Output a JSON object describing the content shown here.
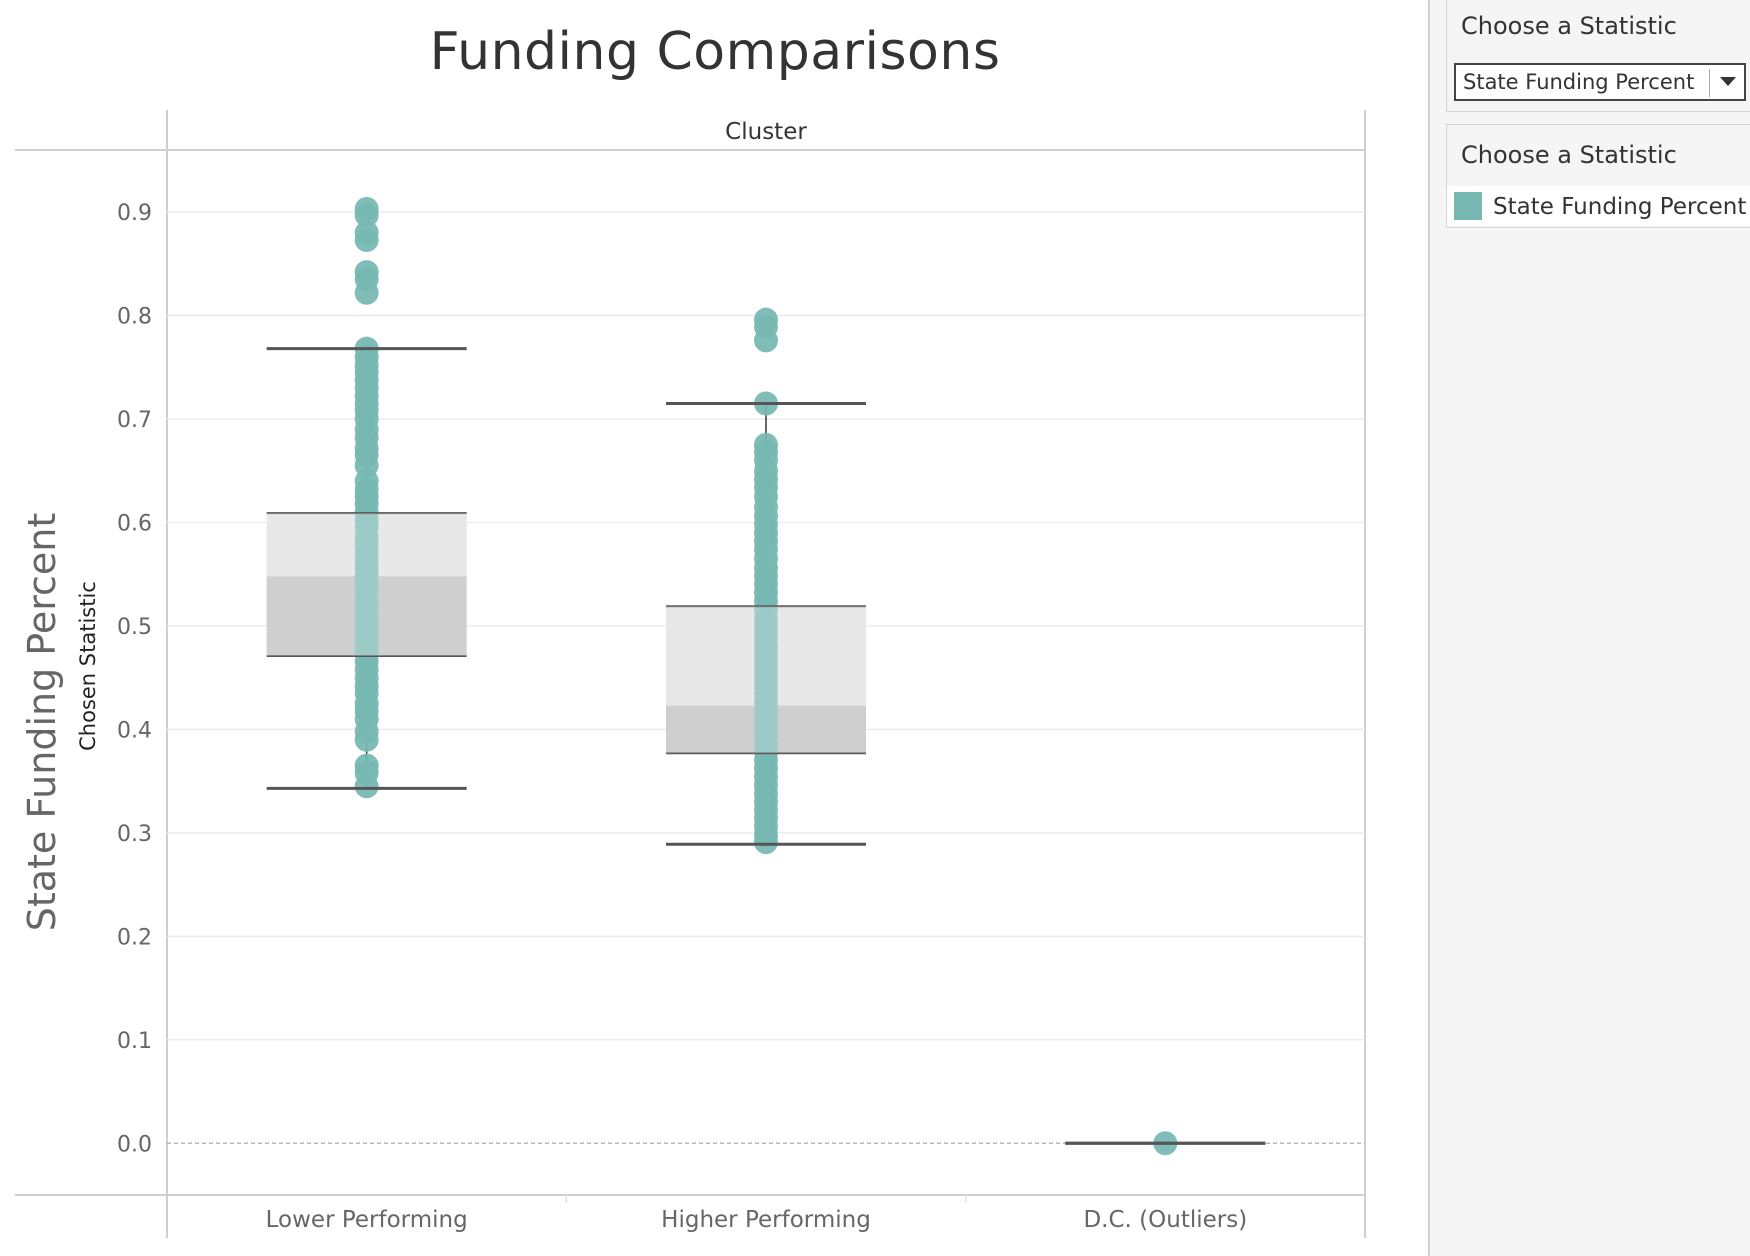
{
  "page": {
    "title": "Funding Comparisons"
  },
  "sidebar": {
    "parameter_title": "Choose a Statistic",
    "parameter_value": "State Funding Percent",
    "legend_title": "Choose a Statistic",
    "legend_item": "State Funding Percent",
    "legend_color": "#76b7b2"
  },
  "chart_data": {
    "type": "boxplot",
    "title": "Funding Comparisons",
    "column_header": "Cluster",
    "ylabel": "State Funding Percent",
    "ylabel_secondary": "Chosen Statistic",
    "ylim": [
      -0.05,
      0.96
    ],
    "yticks": [
      0.0,
      0.1,
      0.2,
      0.3,
      0.4,
      0.5,
      0.6,
      0.7,
      0.8,
      0.9
    ],
    "ytick_labels": [
      "0.0",
      "0.1",
      "0.2",
      "0.3",
      "0.4",
      "0.5",
      "0.6",
      "0.7",
      "0.8",
      "0.9"
    ],
    "grid": true,
    "point_color": "#76b7b2",
    "categories": [
      "Lower Performing",
      "Higher Performing",
      "D.C. (Outliers)"
    ],
    "boxes": [
      {
        "category": "Lower Performing",
        "whisker_low": 0.343,
        "q1": 0.471,
        "median": 0.548,
        "q3": 0.609,
        "whisker_high": 0.768,
        "points": [
          0.903,
          0.897,
          0.88,
          0.873,
          0.842,
          0.835,
          0.822,
          0.768,
          0.76,
          0.752,
          0.745,
          0.738,
          0.73,
          0.722,
          0.715,
          0.708,
          0.7,
          0.69,
          0.682,
          0.672,
          0.665,
          0.655,
          0.64,
          0.632,
          0.625,
          0.618,
          0.61,
          0.602,
          0.595,
          0.585,
          0.578,
          0.57,
          0.562,
          0.555,
          0.548,
          0.54,
          0.532,
          0.522,
          0.515,
          0.505,
          0.498,
          0.49,
          0.482,
          0.475,
          0.466,
          0.458,
          0.45,
          0.442,
          0.435,
          0.425,
          0.418,
          0.41,
          0.398,
          0.39,
          0.365,
          0.358,
          0.345
        ]
      },
      {
        "category": "Higher Performing",
        "whisker_low": 0.289,
        "q1": 0.377,
        "median": 0.423,
        "q3": 0.519,
        "whisker_high": 0.715,
        "points": [
          0.796,
          0.789,
          0.776,
          0.715,
          0.675,
          0.668,
          0.66,
          0.65,
          0.642,
          0.634,
          0.625,
          0.615,
          0.606,
          0.598,
          0.59,
          0.582,
          0.574,
          0.565,
          0.556,
          0.548,
          0.54,
          0.532,
          0.524,
          0.515,
          0.506,
          0.498,
          0.49,
          0.482,
          0.474,
          0.466,
          0.458,
          0.45,
          0.442,
          0.434,
          0.426,
          0.418,
          0.41,
          0.402,
          0.394,
          0.386,
          0.378,
          0.37,
          0.362,
          0.354,
          0.346,
          0.338,
          0.33,
          0.322,
          0.314,
          0.306,
          0.298,
          0.291
        ]
      },
      {
        "category": "D.C. (Outliers)",
        "whisker_low": 0.0,
        "q1": 0.0,
        "median": 0.0,
        "q3": 0.0,
        "whisker_high": 0.0,
        "points": [
          0.0
        ]
      }
    ]
  }
}
